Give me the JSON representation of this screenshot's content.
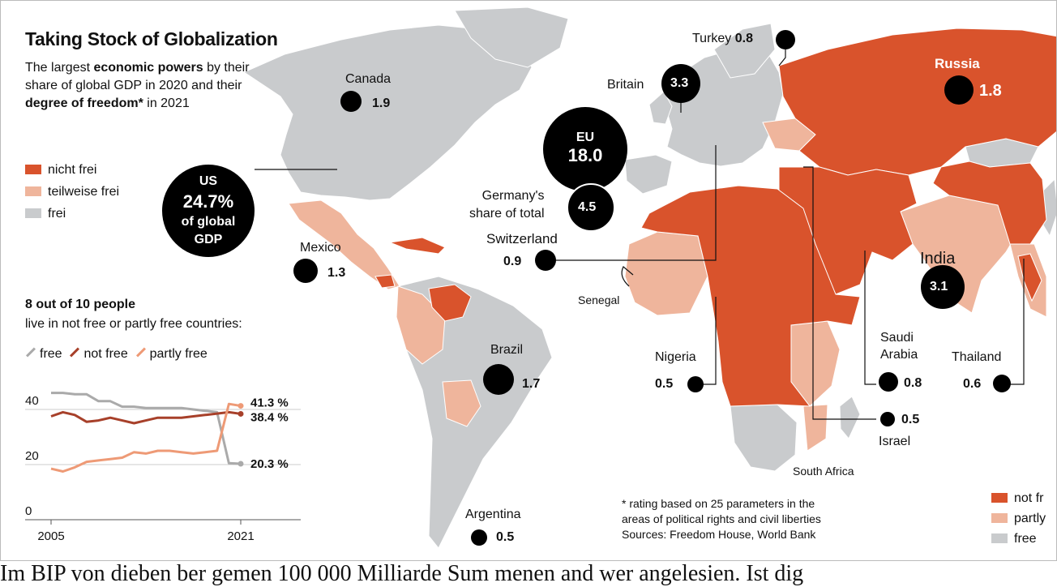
{
  "title": "Taking Stock of Globalization",
  "subtitle": {
    "l1_a": "The largest ",
    "l1_b": "economic powers",
    "l1_c": " by their",
    "l2": "share of global GDP in 2020 and their",
    "l3_a": "degree of freedom*",
    "l3_b": " in 2021"
  },
  "colors": {
    "not_free": "#d9532c",
    "partly_free": "#efb59c",
    "free": "#c9cbcd",
    "bubble": "#000000",
    "line_free": "#aaaaaa",
    "line_not_free": "#a7402a",
    "line_partly_free": "#ee9a76"
  },
  "legend_top": [
    "nicht frei",
    "teilweise frei",
    "frei"
  ],
  "legend_bottom_right": [
    "not fr",
    "partly",
    "free"
  ],
  "countries": {
    "us": {
      "l1": "US",
      "l2": "24.7%",
      "l3": "of global",
      "l4": "GDP"
    },
    "eu": {
      "l1": "EU",
      "l2": "18.0"
    },
    "germany": {
      "label_l1": "Germany's",
      "label_l2": "share of total",
      "value": "4.5"
    },
    "canada": {
      "name": "Canada",
      "value": "1.9"
    },
    "mexico": {
      "name": "Mexico",
      "value": "1.3"
    },
    "brazil": {
      "name": "Brazil",
      "value": "1.7"
    },
    "argentina": {
      "name": "Argentina",
      "value": "0.5"
    },
    "turkey": {
      "name": "Turkey",
      "value": "0.8"
    },
    "britain": {
      "name": "Britain",
      "value": "3.3"
    },
    "russia": {
      "name": "Russia",
      "value": "1.8"
    },
    "switzerland": {
      "name": "Switzerland",
      "value": "0.9"
    },
    "senegal": {
      "name": "Senegal"
    },
    "india": {
      "name": "India",
      "value": "3.1"
    },
    "nigeria": {
      "name": "Nigeria",
      "value": "0.5"
    },
    "saudi": {
      "name_l1": "Saudi",
      "name_l2": "Arabia",
      "value": "0.8"
    },
    "thailand": {
      "name": "Thailand",
      "value": "0.6"
    },
    "israel": {
      "name": "Israel",
      "value": "0.5"
    },
    "south_africa": {
      "name": "South Africa"
    }
  },
  "people": {
    "heading": "8 out of 10 people",
    "sub": "live in not free or partly free countries:",
    "legend": [
      "free",
      "not free",
      "partly free"
    ]
  },
  "chart_data": {
    "type": "line",
    "x": [
      2005,
      2006,
      2007,
      2008,
      2009,
      2010,
      2011,
      2012,
      2013,
      2014,
      2015,
      2016,
      2017,
      2018,
      2019,
      2020,
      2021
    ],
    "series": [
      {
        "name": "free",
        "values": [
          46,
          46,
          45.5,
          45.5,
          43,
          43,
          41,
          41,
          40.5,
          40.5,
          40.5,
          40.5,
          40,
          39.5,
          39,
          20.5,
          20.3
        ]
      },
      {
        "name": "not free",
        "values": [
          37.5,
          39,
          38,
          35.5,
          36,
          37,
          36,
          35,
          36,
          37,
          37,
          37,
          37.5,
          38,
          38.5,
          39,
          38.4
        ]
      },
      {
        "name": "partly free",
        "values": [
          18.5,
          17.5,
          19,
          21,
          21.5,
          22,
          22.5,
          24.5,
          24,
          25,
          25,
          24.5,
          24,
          24.5,
          25,
          42,
          41.3
        ]
      }
    ],
    "end_labels": [
      "41.3 %",
      "38.4 %",
      "20.3 %"
    ],
    "ytick_labels": [
      "40",
      "20",
      "0"
    ],
    "xtick_labels": [
      "2005",
      "2021"
    ],
    "ylim": [
      0,
      50
    ]
  },
  "footnote": {
    "l1": "* rating based on 25 parameters in the",
    "l2": "areas of political rights and civil liberties",
    "l3": "Sources: Freedom House, World Bank"
  },
  "bottom_text": "Im BIP von dieben ber gemen 100 000 Milliarde Sum menen and wer angelesien. Ist dig"
}
